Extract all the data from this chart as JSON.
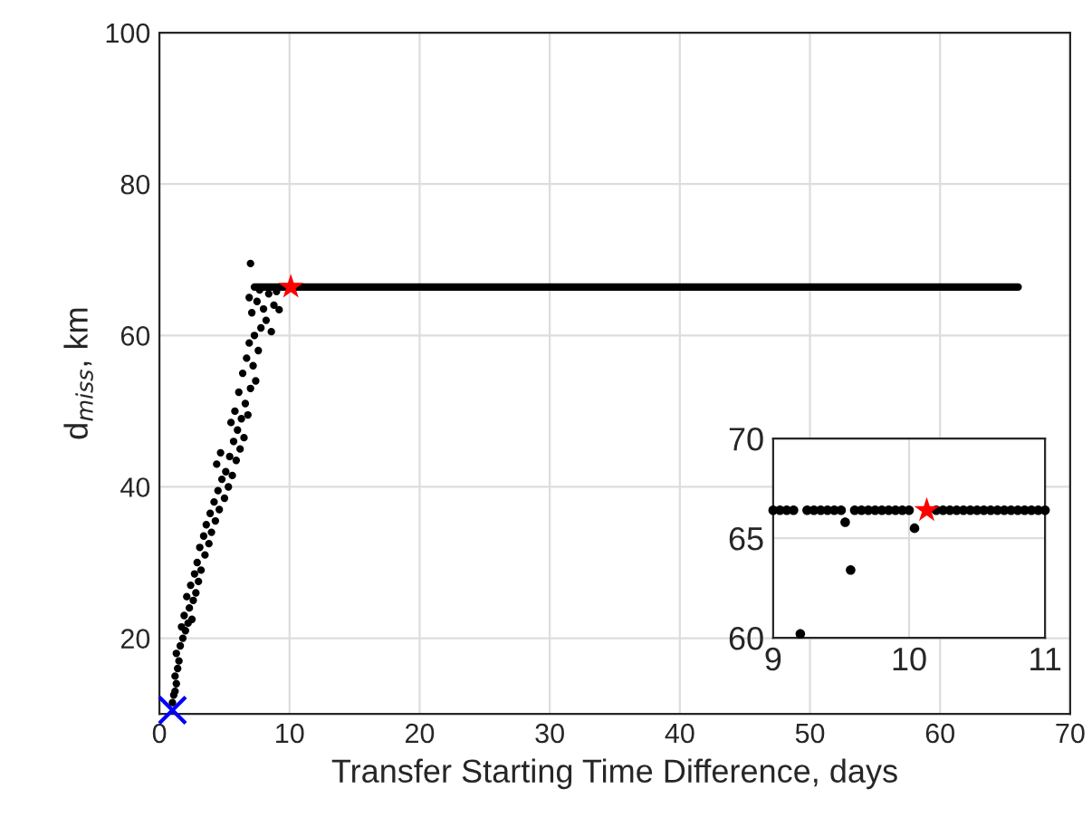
{
  "chart_data": [
    {
      "type": "scatter",
      "xlabel": "Transfer Starting Time Difference, days",
      "ylabel": "d$_{miss}$, km",
      "xlim": [
        0,
        70
      ],
      "ylim": [
        10,
        100
      ],
      "xticks": [
        0,
        10,
        20,
        30,
        40,
        50,
        60,
        70
      ],
      "yticks": [
        20,
        40,
        60,
        80,
        100
      ],
      "grid": true,
      "series": [
        {
          "color": "#000000",
          "marker": "circle",
          "x": [
            1.0,
            1.1,
            1.2,
            1.3,
            1.2,
            1.4,
            1.5,
            1.3,
            1.6,
            1.8,
            2.0,
            1.7,
            2.2,
            2.5,
            1.9,
            2.3,
            2.6,
            2.1,
            2.8,
            2.4,
            3.0,
            2.7,
            3.2,
            2.9,
            3.5,
            3.1,
            3.8,
            3.4,
            4.0,
            3.6,
            4.3,
            3.9,
            4.6,
            4.2,
            5.0,
            4.5,
            5.3,
            4.8,
            5.6,
            5.1,
            4.4,
            5.9,
            5.4,
            4.7,
            6.2,
            5.7,
            6.5,
            6.0,
            5.5,
            6.3,
            6.8,
            5.8,
            6.6,
            6.1,
            7.0,
            7.4,
            6.4,
            7.2,
            6.7,
            7.6,
            6.9,
            7.3,
            8.6,
            7.8,
            8.2,
            7.1,
            8.0,
            8.8,
            7.5,
            6.9,
            8.4,
            7.7,
            7.0,
            9.2,
            9.0
          ],
          "values": [
            11.5,
            12.5,
            13,
            14,
            15,
            16,
            17,
            18,
            19,
            20,
            21,
            21.5,
            22,
            22.5,
            23,
            24,
            25,
            25.5,
            26,
            27,
            27.5,
            28.5,
            29,
            30,
            31,
            32,
            32.5,
            33.5,
            34,
            35,
            35.5,
            36.5,
            37,
            38,
            38.5,
            39.5,
            40,
            41,
            41.5,
            42,
            43,
            43.5,
            44,
            44.5,
            45,
            46,
            46.5,
            47.5,
            48.5,
            49,
            49.5,
            50,
            51,
            52.5,
            53,
            54,
            55,
            56,
            57,
            58,
            59,
            60,
            60.5,
            61,
            62,
            63,
            63.5,
            64,
            64.5,
            65,
            65.5,
            66,
            69.5,
            63.4,
            65.8
          ]
        },
        {
          "type": "line",
          "color": "#000000",
          "x": [
            7.3,
            66
          ],
          "values": [
            66.4,
            66.4
          ]
        },
        {
          "color": "#ff0000",
          "marker": "star",
          "x": [
            10.1
          ],
          "values": [
            66.4
          ]
        },
        {
          "color": "#0000ff",
          "marker": "cross",
          "x": [
            1.0
          ],
          "values": [
            10.5
          ]
        }
      ]
    },
    {
      "type": "scatter",
      "xlim": [
        9,
        11
      ],
      "ylim": [
        60,
        70
      ],
      "xticks": [
        9,
        10,
        11
      ],
      "yticks": [
        60,
        65,
        70
      ],
      "grid": true,
      "series": [
        {
          "color": "#000000",
          "marker": "circle",
          "x": [
            9.0,
            9.05,
            9.1,
            9.15,
            9.25,
            9.3,
            9.35,
            9.4,
            9.45,
            9.5,
            9.6,
            9.65,
            9.7,
            9.75,
            9.8,
            9.85,
            9.9,
            9.95,
            10.0,
            10.2,
            10.25,
            10.3,
            10.35,
            10.4,
            10.45,
            10.5,
            10.55,
            10.6,
            10.65,
            10.7,
            10.75,
            10.8,
            10.85,
            10.9,
            10.95,
            11.0,
            9.2,
            9.53,
            9.57,
            10.04
          ],
          "values": [
            66.4,
            66.4,
            66.4,
            66.4,
            66.4,
            66.4,
            66.4,
            66.4,
            66.4,
            66.4,
            66.4,
            66.4,
            66.4,
            66.4,
            66.4,
            66.4,
            66.4,
            66.4,
            66.4,
            66.4,
            66.4,
            66.4,
            66.4,
            66.4,
            66.4,
            66.4,
            66.4,
            66.4,
            66.4,
            66.4,
            66.4,
            66.4,
            66.4,
            66.4,
            66.4,
            66.4,
            60.2,
            65.8,
            63.4,
            65.5
          ]
        },
        {
          "color": "#ff0000",
          "marker": "star",
          "x": [
            10.13
          ],
          "values": [
            66.4
          ]
        }
      ]
    }
  ]
}
